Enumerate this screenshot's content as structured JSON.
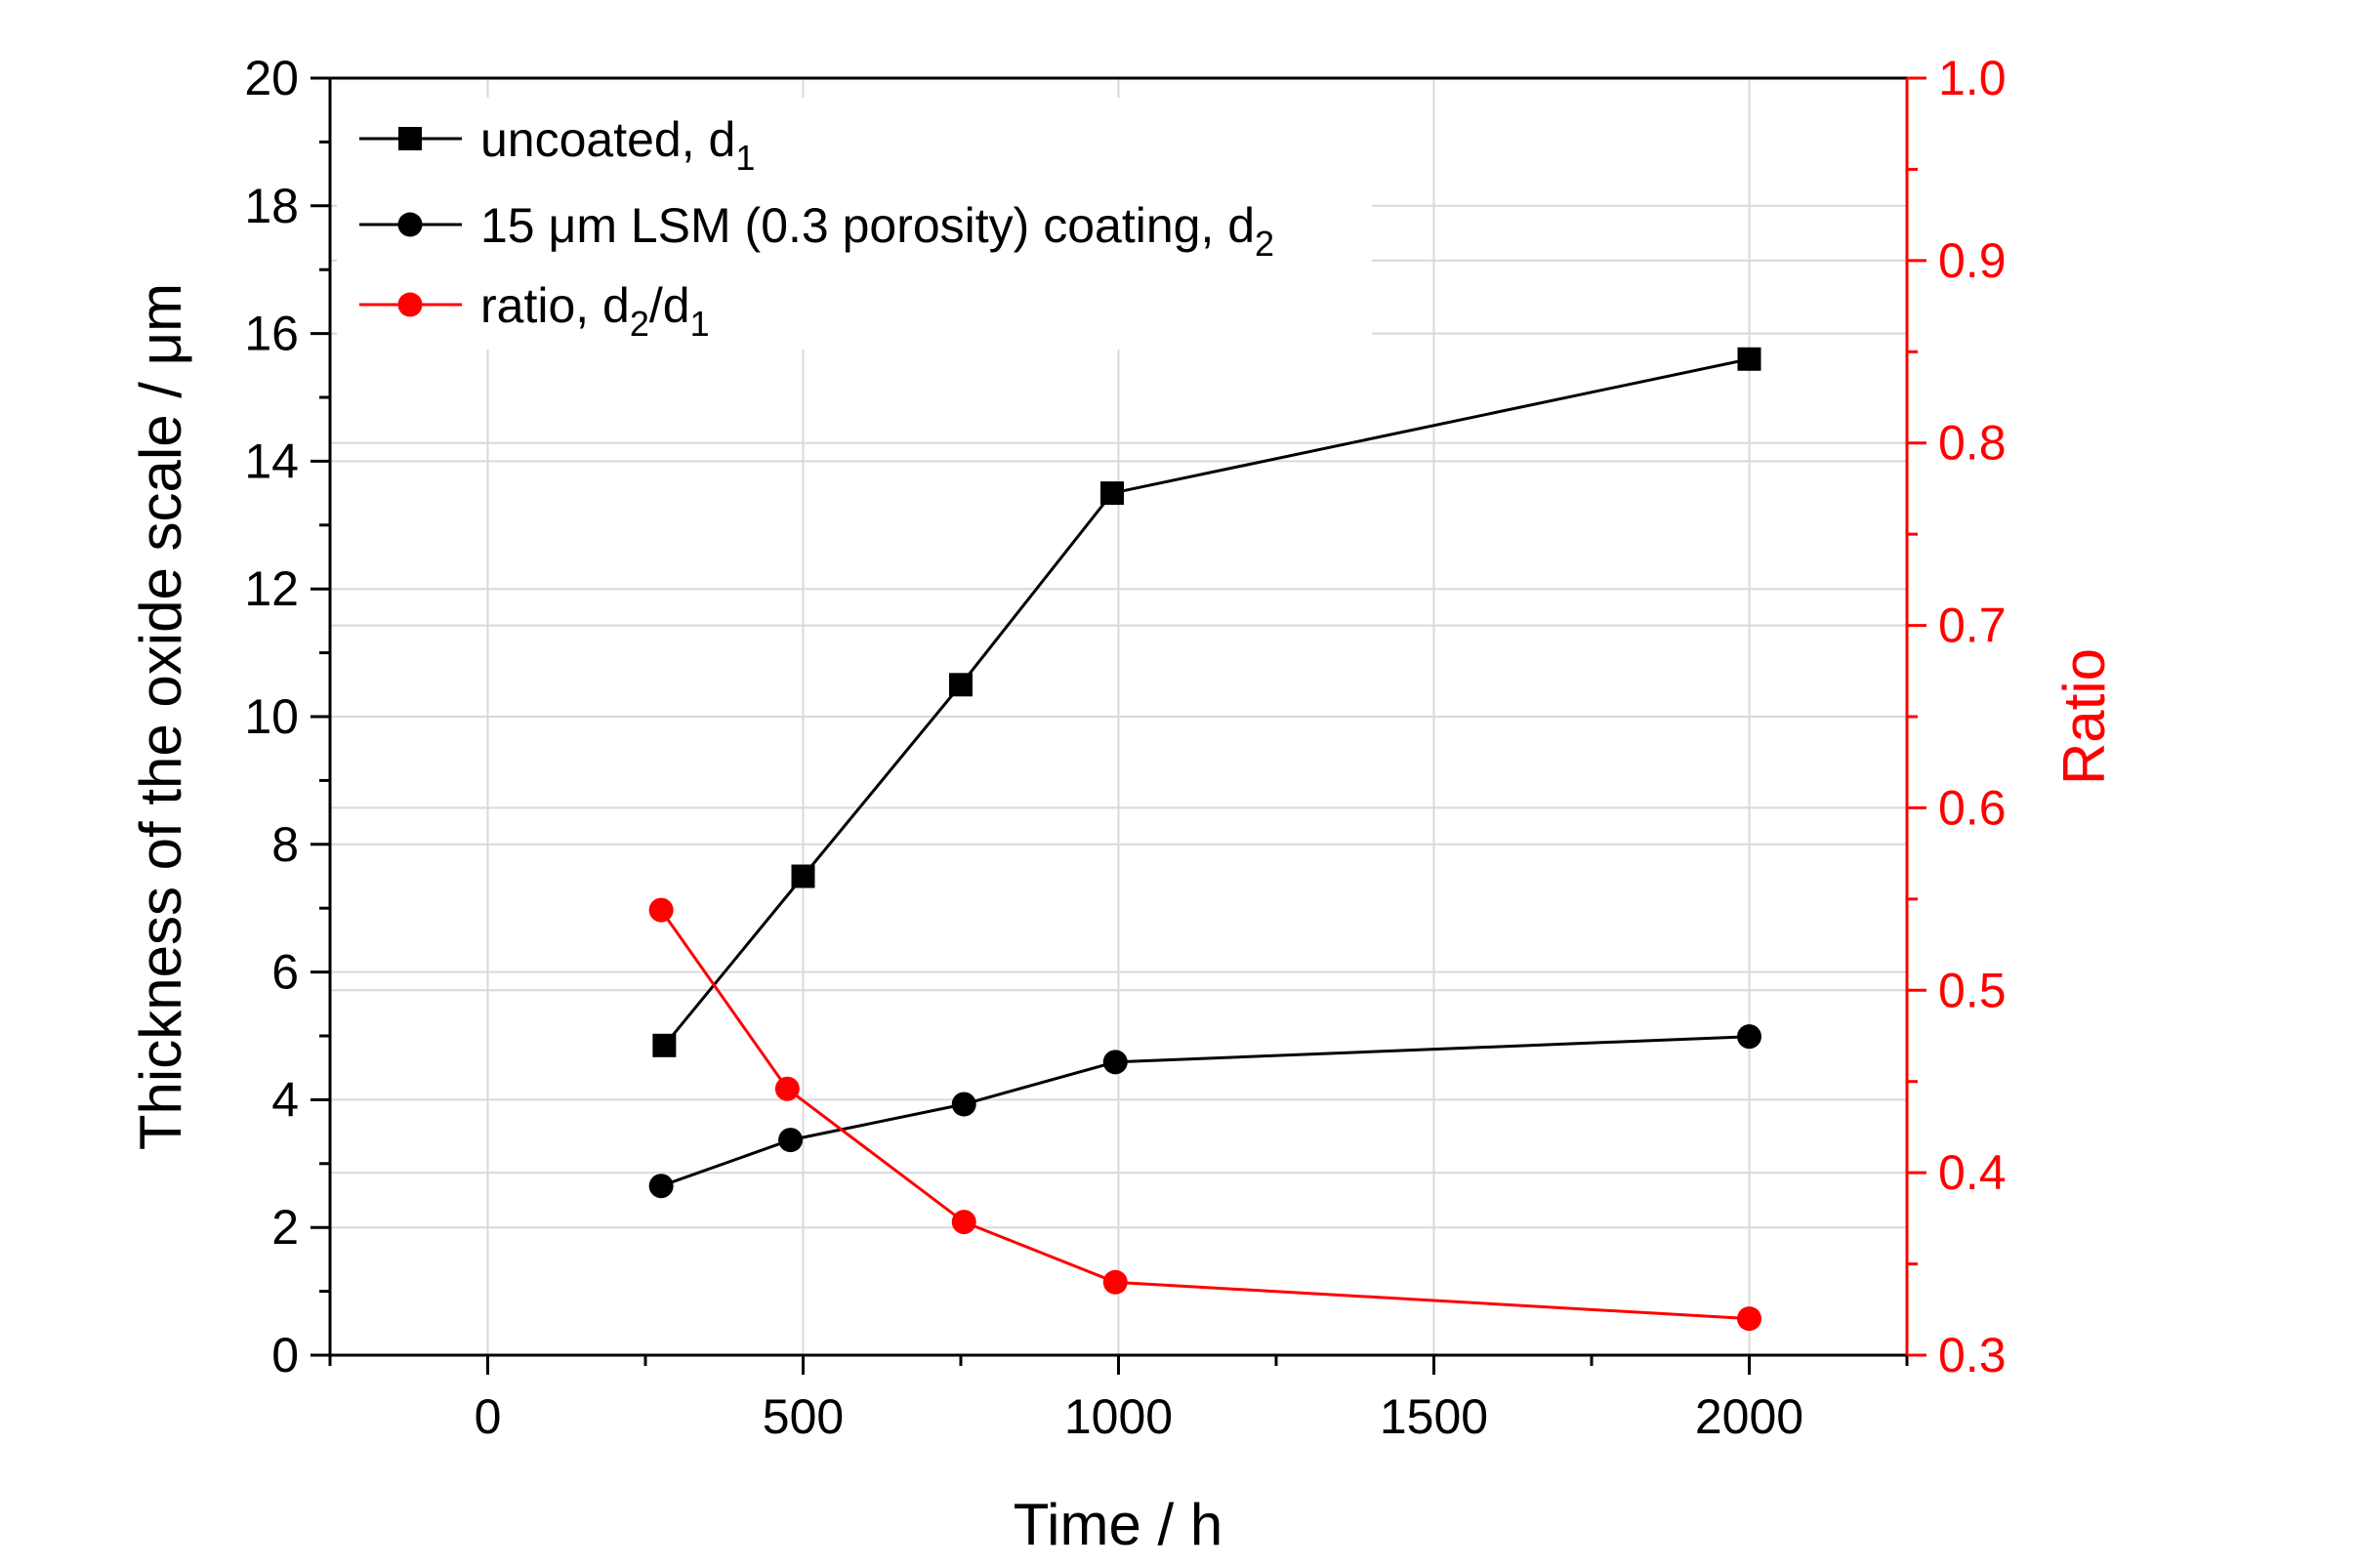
{
  "chart_data": {
    "type": "line",
    "x_axis": {
      "label": "Time / h",
      "range": [
        -250,
        2250
      ],
      "ticks": [
        0,
        500,
        1000,
        1500,
        2000
      ],
      "tick_labels": [
        "0",
        "500",
        "1000",
        "1500",
        "2000"
      ],
      "minor_step": 250
    },
    "y_left": {
      "label": "Thickness of the oxide scale / μm",
      "range": [
        0,
        20
      ],
      "ticks": [
        0,
        2,
        4,
        6,
        8,
        10,
        12,
        14,
        16,
        18,
        20
      ],
      "tick_labels": [
        "0",
        "2",
        "4",
        "6",
        "8",
        "10",
        "12",
        "14",
        "16",
        "18",
        "20"
      ],
      "minor_step": 1
    },
    "y_right": {
      "label": "Ratio",
      "range": [
        0.3,
        1.0
      ],
      "ticks": [
        0.3,
        0.4,
        0.5,
        0.6,
        0.7,
        0.8,
        0.9,
        1.0
      ],
      "tick_labels": [
        "0.3",
        "0.4",
        "0.5",
        "0.6",
        "0.7",
        "0.8",
        "0.9",
        "1.0"
      ],
      "minor_step": 0.05,
      "color": "#ff0000"
    },
    "grid": true,
    "legend_position": "top-left",
    "series": [
      {
        "name": "uncoated, d1",
        "legend_text": "uncoated, d",
        "legend_sub": "1",
        "axis": "left",
        "marker": "square",
        "color": "#000000",
        "x": [
          280,
          500,
          750,
          990,
          2000
        ],
        "y": [
          4.85,
          7.5,
          10.5,
          13.5,
          15.6
        ]
      },
      {
        "name": "15 μm LSM (0.3 porosity) coating, d2",
        "legend_text": "15 μm LSM (0.3 porosity) coating, d",
        "legend_sub": "2",
        "axis": "left",
        "marker": "circle",
        "color": "#000000",
        "x": [
          275,
          480,
          755,
          995,
          2000
        ],
        "y": [
          2.65,
          3.37,
          3.93,
          4.59,
          4.99
        ]
      },
      {
        "name": "ratio, d2/d1",
        "legend_text": "ratio, d",
        "legend_sub": "2",
        "legend_mid": "/d",
        "legend_sub2": "1",
        "axis": "right",
        "marker": "circle",
        "color": "#ff0000",
        "x": [
          275,
          475,
          755,
          995,
          2000
        ],
        "y": [
          0.544,
          0.446,
          0.373,
          0.34,
          0.32
        ]
      }
    ]
  }
}
